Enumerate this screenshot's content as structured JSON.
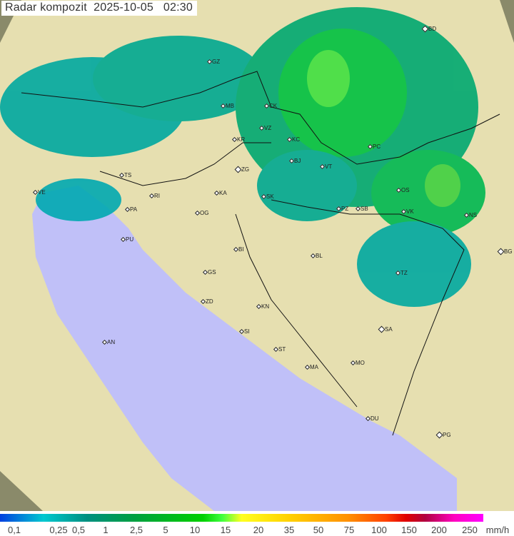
{
  "title": "Radar kompozit  2025-10-05   02:30",
  "cities": [
    {
      "code": "BD",
      "big": true
    },
    {
      "code": "GZ"
    },
    {
      "code": "MB"
    },
    {
      "code": "CK"
    },
    {
      "code": "VZ"
    },
    {
      "code": "KR"
    },
    {
      "code": "KC"
    },
    {
      "code": "PC"
    },
    {
      "code": "TS"
    },
    {
      "code": "ZG",
      "big": true
    },
    {
      "code": "BJ"
    },
    {
      "code": "VT"
    },
    {
      "code": "VE"
    },
    {
      "code": "KA"
    },
    {
      "code": "RI"
    },
    {
      "code": "SK"
    },
    {
      "code": "OS"
    },
    {
      "code": "PA"
    },
    {
      "code": "OG"
    },
    {
      "code": "PZ"
    },
    {
      "code": "SB"
    },
    {
      "code": "VK"
    },
    {
      "code": "NS"
    },
    {
      "code": "PU"
    },
    {
      "code": "BI"
    },
    {
      "code": "BL"
    },
    {
      "code": "BG",
      "big": true
    },
    {
      "code": "GS"
    },
    {
      "code": "TZ"
    },
    {
      "code": "ZD"
    },
    {
      "code": "KN"
    },
    {
      "code": "SA",
      "big": true
    },
    {
      "code": "AN"
    },
    {
      "code": "SI"
    },
    {
      "code": "ST"
    },
    {
      "code": "MA"
    },
    {
      "code": "MO"
    },
    {
      "code": "DU"
    },
    {
      "code": "PG",
      "big": true
    }
  ],
  "legend": {
    "ticks": [
      "0,1",
      "0,25",
      "0,5",
      "1",
      "2,5",
      "5",
      "10",
      "15",
      "20",
      "35",
      "50",
      "75",
      "100",
      "150",
      "200",
      "250"
    ],
    "unit": "mm/h"
  },
  "colors": {
    "land": "#e6dfb0",
    "sea": "#c0c0f8",
    "outside": "#8a8a6a",
    "radar_low": "#00a0a0",
    "radar_mid": "#00b060",
    "radar_high": "#30e030"
  }
}
